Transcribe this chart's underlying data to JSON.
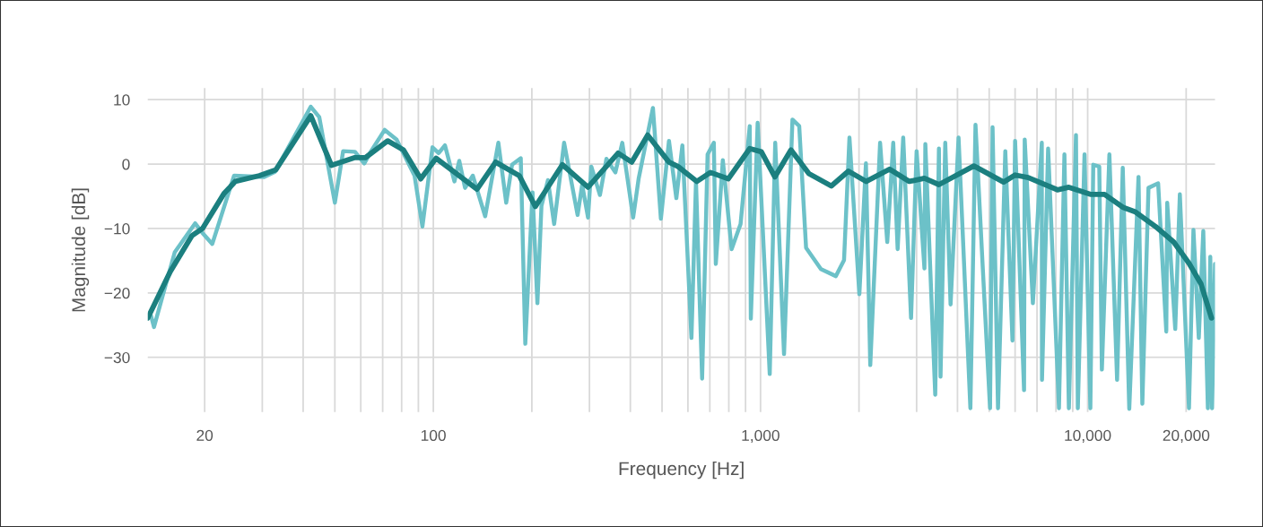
{
  "chart_data": {
    "type": "line",
    "xlabel": "Frequency [Hz]",
    "ylabel": "Magnitude [dB]",
    "log": "x",
    "grid": true,
    "legend": false,
    "marker": "none",
    "line_style": "solid",
    "xlim": [
      13.4,
      24500
    ],
    "ylim": [
      -38.5,
      11.8
    ],
    "xticks": [
      20,
      {
        "value": 30,
        "label": null
      },
      {
        "value": 40,
        "label": null
      },
      {
        "value": 50,
        "label": null
      },
      {
        "value": 60,
        "label": null
      },
      {
        "value": 70,
        "label": null
      },
      {
        "value": 80,
        "label": null
      },
      {
        "value": 90,
        "label": null
      },
      100,
      {
        "value": 200,
        "label": null
      },
      {
        "value": 300,
        "label": null
      },
      {
        "value": 400,
        "label": null
      },
      {
        "value": 500,
        "label": null
      },
      {
        "value": 600,
        "label": null
      },
      {
        "value": 700,
        "label": null
      },
      {
        "value": 800,
        "label": null
      },
      {
        "value": 900,
        "label": null
      },
      {
        "value": 1000,
        "label": "1,000"
      },
      {
        "value": 2000,
        "label": null
      },
      {
        "value": 3000,
        "label": null
      },
      {
        "value": 4000,
        "label": null
      },
      {
        "value": 5000,
        "label": null
      },
      {
        "value": 6000,
        "label": null
      },
      {
        "value": 7000,
        "label": null
      },
      {
        "value": 8000,
        "label": null
      },
      {
        "value": 9000,
        "label": null
      },
      {
        "value": 10000,
        "label": "10,000"
      },
      {
        "value": 20000,
        "label": "20,000"
      }
    ],
    "yticks": [
      {
        "value": -30,
        "label": "−30"
      },
      {
        "value": -20,
        "label": "−20"
      },
      {
        "value": -10,
        "label": "−10"
      },
      0,
      10
    ],
    "series": [
      {
        "color": "#6cc1c8",
        "x": [
          13.7,
          14.0,
          16.2,
          18.7,
          19.7,
          21.1,
          24.6,
          30.4,
          32.8,
          42.2,
          44.8,
          50,
          53,
          57.6,
          61.5,
          64,
          71,
          77.2,
          87.6,
          92.6,
          99.4,
          103.8,
          108.5,
          116,
          120,
          125,
          132,
          144,
          158,
          167,
          174,
          185,
          191,
          201,
          208,
          214,
          224,
          234,
          251,
          276,
          285,
          297,
          304,
          323,
          338,
          360,
          378,
          408,
          424,
          469,
          496,
          525,
          553,
          577,
          615,
          635,
          663,
          689,
          720,
          730,
          767,
          816,
          869,
          927,
          934,
          980,
          1067,
          1109,
          1180,
          1252,
          1313,
          1378,
          1530,
          1700,
          1800,
          1870,
          2005,
          2100,
          2165,
          2320,
          2440,
          2545,
          2625,
          2730,
          2885,
          3000,
          3170,
          3190,
          3420,
          3510,
          3550,
          3670,
          3810,
          4030,
          4380,
          4540,
          4780,
          5030,
          5120,
          5320,
          5600,
          5890,
          6000,
          6390,
          6420,
          6800,
          7240,
          7250,
          7570,
          8170,
          8490,
          8760,
          9210,
          9330,
          9780,
          10190,
          10400,
          10850,
          11050,
          11650,
          12300,
          12800,
          13400,
          14300,
          14690,
          15340,
          16420,
          17390,
          17500,
          18520,
          19130,
          20400,
          21050,
          21860,
          22560,
          23300,
          23700,
          24000,
          24500
        ],
        "values": [
          -23.5,
          -25.3,
          -13.7,
          -9.2,
          -10.7,
          -12.4,
          -1.8,
          -2.0,
          -1.2,
          8.9,
          7.3,
          -6.0,
          2.0,
          1.9,
          0.1,
          1.7,
          5.3,
          3.8,
          -1.8,
          -9.7,
          2.6,
          1.7,
          2.9,
          -2.7,
          0.5,
          -3.7,
          -1.8,
          -8.1,
          3.3,
          -6.0,
          -0.1,
          0.9,
          -27.9,
          -4.4,
          -21.6,
          -6.5,
          -2.5,
          -9.3,
          3.3,
          -7.9,
          -3.2,
          -8.3,
          -0.4,
          -4.8,
          0.8,
          -1.3,
          3.3,
          -8.3,
          -2.3,
          8.7,
          -8.5,
          3.6,
          -5.3,
          2.9,
          -27.0,
          -2.7,
          -33.3,
          1.5,
          3.3,
          -15.5,
          0.6,
          -13.2,
          -9.3,
          5.9,
          -24.0,
          6.4,
          -32.6,
          3.3,
          -29.5,
          6.9,
          5.9,
          -13.0,
          -16.3,
          -17.4,
          -14.9,
          4.1,
          -20.2,
          0.1,
          -31.2,
          3.3,
          -12.1,
          3.3,
          -13.2,
          4.1,
          -23.9,
          2.0,
          -16.2,
          3.1,
          -35.8,
          2.4,
          -33.0,
          3.3,
          -21.8,
          4.1,
          -37.9,
          6.1,
          -16.2,
          -37.9,
          5.7,
          -37.9,
          2.0,
          -27.4,
          3.6,
          -35.1,
          3.8,
          -21.6,
          3.3,
          -33.5,
          2.4,
          -37.9,
          1.5,
          -37.9,
          4.5,
          -37.9,
          1.5,
          -37.9,
          -0.1,
          -0.4,
          -31.9,
          1.5,
          -33.5,
          -0.6,
          -38.0,
          -2.0,
          -37.2,
          -3.7,
          -3.0,
          -26.0,
          -6.0,
          -25.6,
          -4.7,
          -37.9,
          -10.2,
          -27.0,
          -10.4,
          -37.9,
          -14.4,
          -37.9,
          -15.5
        ]
      },
      {
        "color": "#1b7f7f",
        "x": [
          13.4,
          15.7,
          18.3,
          19.7,
          22.9,
          24.8,
          29.4,
          33,
          42.2,
          48.8,
          57.6,
          62,
          72.5,
          81,
          91.5,
          102,
          136,
          155,
          183,
          205,
          248,
          297,
          367,
          404,
          452,
          525,
          560,
          639,
          703,
          797,
          927,
          1006,
          1106,
          1239,
          1406,
          1646,
          1856,
          2105,
          2480,
          2850,
          3170,
          3510,
          4490,
          5530,
          6000,
          6580,
          8080,
          8760,
          10190,
          11260,
          12800,
          13950,
          16130,
          18320,
          20400,
          22200,
          23900
        ],
        "values": [
          -23.9,
          -16.7,
          -11.1,
          -10.0,
          -4.6,
          -2.7,
          -1.8,
          -0.9,
          7.5,
          -0.2,
          1.0,
          1.0,
          3.6,
          2.2,
          -2.3,
          0.9,
          -3.9,
          0.3,
          -1.8,
          -6.6,
          -0.1,
          -3.6,
          1.7,
          0.3,
          4.5,
          0.3,
          -0.4,
          -2.7,
          -1.3,
          -2.3,
          2.4,
          1.9,
          -2.0,
          2.2,
          -1.5,
          -3.4,
          -1.1,
          -2.7,
          -0.8,
          -2.7,
          -2.2,
          -3.2,
          -0.3,
          -2.8,
          -1.7,
          -2.1,
          -4.0,
          -3.6,
          -4.7,
          -4.7,
          -6.7,
          -7.4,
          -9.7,
          -12.1,
          -15.4,
          -18.6,
          -23.9
        ]
      }
    ]
  }
}
